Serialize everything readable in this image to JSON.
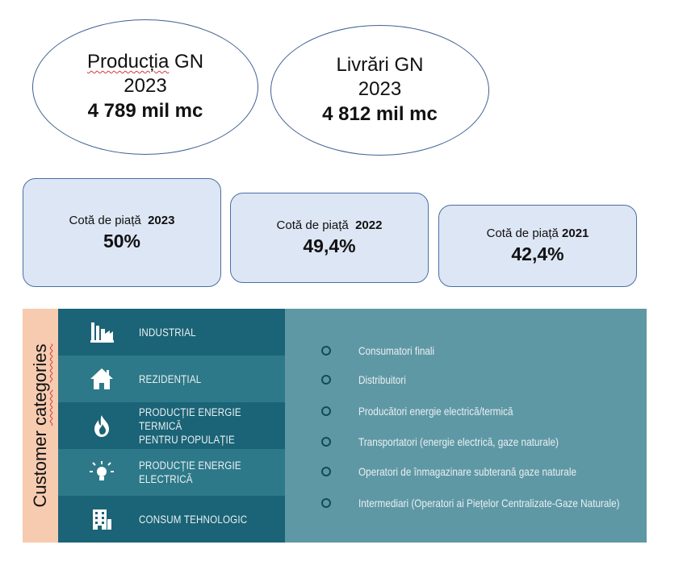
{
  "ellipses": [
    {
      "label_word": "Producția",
      "label_rest": " GN",
      "year": "2023",
      "value": "4 789 mil mc"
    },
    {
      "label": "Livrări GN",
      "year": "2023",
      "value": "4 812 mil mc"
    }
  ],
  "market_share": [
    {
      "label": "Cotă de piață",
      "year": "2023",
      "value": "50%"
    },
    {
      "label": "Cotă de piață",
      "year": "2022",
      "value": "49,4%"
    },
    {
      "label": "Cotă de piață",
      "year": "2021",
      "value": "42,4%"
    }
  ],
  "categories_title_a": "Customer ",
  "categories_title_b": "categories",
  "categories": [
    {
      "label_1": "Industrial",
      "label_2": "",
      "icon": "factory-icon"
    },
    {
      "label_1": "Rezidențial",
      "label_2": "",
      "icon": "house-icon"
    },
    {
      "label_1": "Producție energie termică",
      "label_2": "pentru populație",
      "icon": "flame-icon"
    },
    {
      "label_1": "Producție energie electrică",
      "label_2": "",
      "icon": "lightbulb-icon"
    },
    {
      "label_1": "Consum tehnologic",
      "label_2": "",
      "icon": "building-icon"
    }
  ],
  "consumer_types": [
    "Consumatori finali",
    "Distribuitori",
    "Producători energie electrică/termică",
    "Transportatori (energie electrică, gaze naturale)",
    "Operatori de înmagazinare subterană gaze naturale",
    "Intermediari (Operatori ai Piețelor Centralizate-Gaze Naturale)"
  ],
  "colors": {
    "ellipse_border": "#3f5f94",
    "card_fill": "#dde6f4",
    "card_border": "#4a6fa5",
    "category_strip": "#f7cbb0",
    "category_dark": "#1b6376",
    "category_light": "#2e7989",
    "list_panel": "#5f98a5",
    "bullet": "#134a58"
  }
}
